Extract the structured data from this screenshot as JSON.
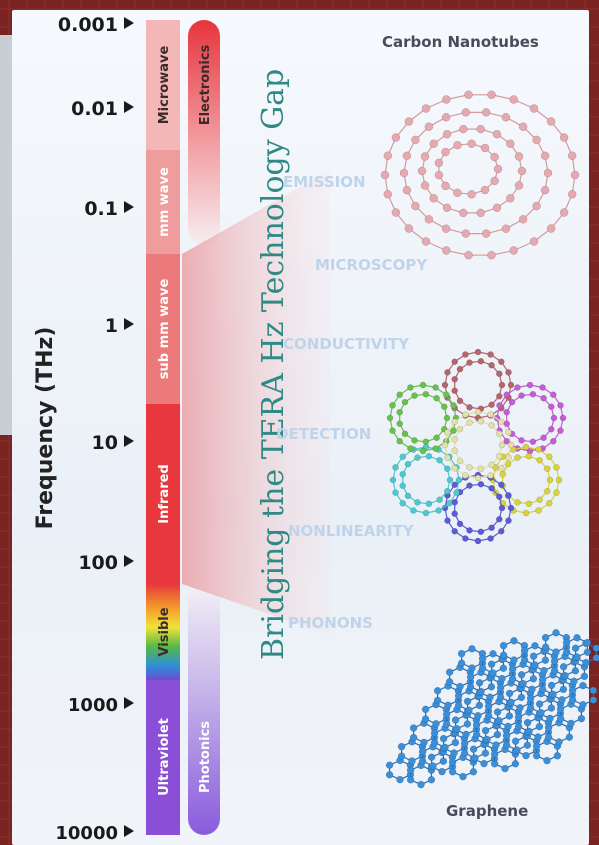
{
  "axis": {
    "title": "Frequency (THz)",
    "ticks": [
      "0.001",
      "0.01",
      "0.1",
      "1",
      "10",
      "100",
      "1000",
      "10000"
    ]
  },
  "bands": [
    {
      "label": "Microwave",
      "color": "#f4b7b7"
    },
    {
      "label": "mm wave",
      "color": "#ee9c9c"
    },
    {
      "label": "sub mm wave",
      "color": "#ec7a7a"
    },
    {
      "label": "Infrared",
      "color": "#e8383d"
    },
    {
      "label": "Visible",
      "color": "#7bc043"
    },
    {
      "label": "Ultraviolet",
      "color": "#8a4fd6"
    }
  ],
  "ranges": {
    "electronics": {
      "label": "Electronics",
      "color": "#e6353d"
    },
    "photonics": {
      "label": "Photonics",
      "color": "#8a5bdc"
    }
  },
  "gap_title": "Bridging the TERA Hz Technology Gap",
  "properties": [
    "EMISSION",
    "MICROSCOPY",
    "CONDUCTIVITY",
    "DETECTION",
    "NONLINEARITY",
    "PHONONS"
  ],
  "materials": {
    "top": "Carbon Nanotubes",
    "bottom": "Graphene"
  },
  "colors": {
    "nanotube_bead": "#e6a9b0",
    "graphene_bead": "#3b8fd9",
    "property_text": "#bfd3ea",
    "gap_text": "#2f8a86"
  }
}
